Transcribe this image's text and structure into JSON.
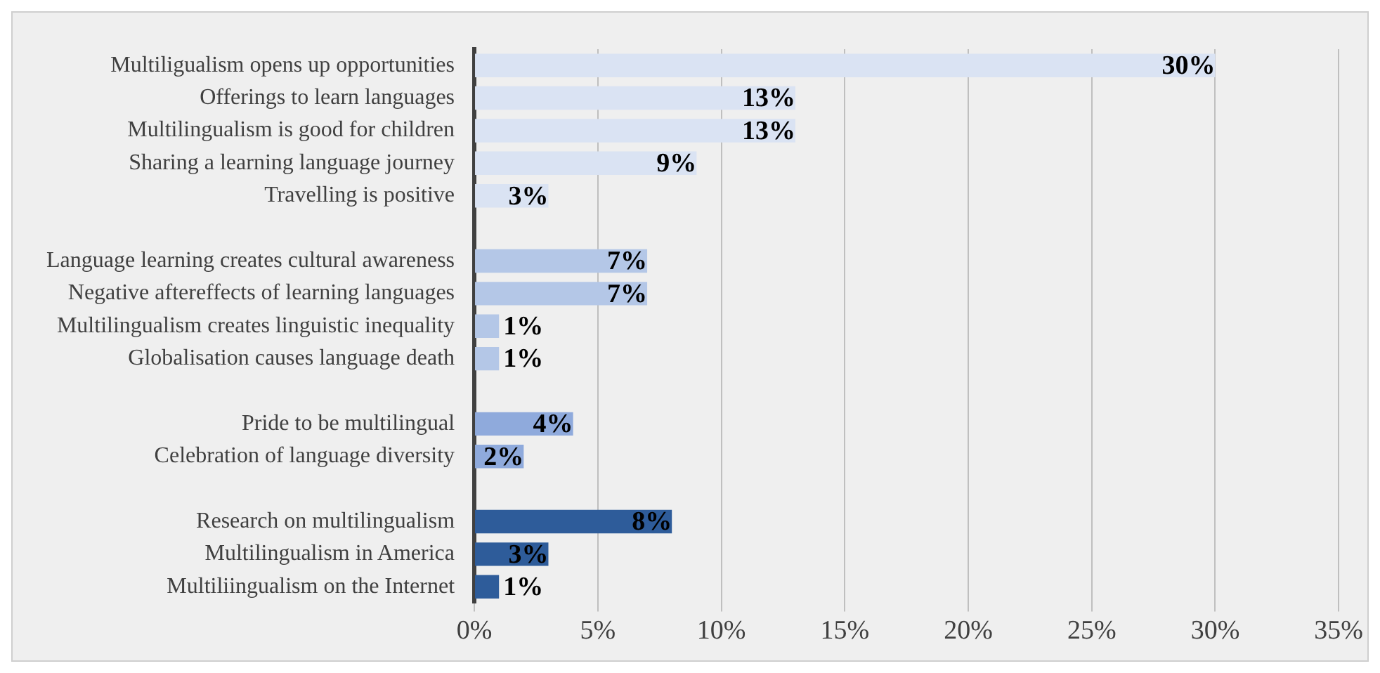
{
  "chart_data": {
    "type": "bar",
    "orientation": "horizontal",
    "categories": [
      "Multiligualism opens up opportunities",
      "Offerings to learn languages",
      "Multilingualism is good for children",
      "Sharing a learning language journey",
      "Travelling is positive",
      null,
      "Language learning creates cultural awareness",
      "Negative aftereffects of learning languages",
      "Multilingualism creates linguistic inequality",
      "Globalisation causes language death",
      null,
      "Pride to be multilingual",
      "Celebration of language diversity",
      null,
      "Research on multilingualism",
      "Multilingualism in America",
      "Multiliingualism on the Internet"
    ],
    "values": [
      30,
      13,
      13,
      9,
      3,
      null,
      7,
      7,
      1,
      1,
      null,
      4,
      2,
      null,
      8,
      3,
      1
    ],
    "value_labels": [
      "30%",
      "13%",
      "13%",
      "9%",
      "3%",
      null,
      "7%",
      "7%",
      "1%",
      "1%",
      null,
      "4%",
      "2%",
      null,
      "8%",
      "3%",
      "1%"
    ],
    "colors": [
      "#dae3f3",
      "#dae3f3",
      "#dae3f3",
      "#dae3f3",
      "#dae3f3",
      null,
      "#b4c7e7",
      "#b4c7e7",
      "#b4c7e7",
      "#b4c7e7",
      null,
      "#8faadc",
      "#8faadc",
      null,
      "#2e5c9a",
      "#2e5c9a",
      "#2e5c9a"
    ],
    "xlim": [
      0,
      35
    ],
    "xticks": [
      {
        "value": 0,
        "label": "0%"
      },
      {
        "value": 5,
        "label": "5%"
      },
      {
        "value": 10,
        "label": "10%"
      },
      {
        "value": 15,
        "label": "15%"
      },
      {
        "value": 20,
        "label": "20%"
      },
      {
        "value": 25,
        "label": "25%"
      },
      {
        "value": 30,
        "label": "30%"
      },
      {
        "value": 35,
        "label": "35%"
      }
    ],
    "grid": "x",
    "legend": false
  }
}
